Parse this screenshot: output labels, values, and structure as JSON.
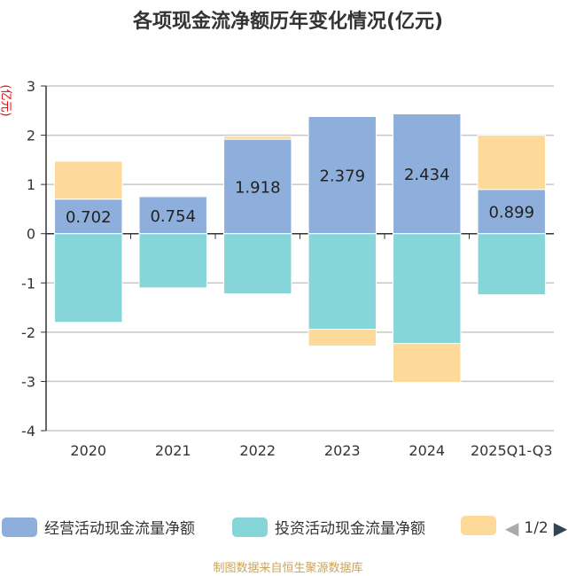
{
  "chart_data": {
    "type": "bar",
    "stacked": true,
    "title": "各项现金流净额历年变化情况(亿元)",
    "ylabel": "(亿元)",
    "categories": [
      "2020",
      "2021",
      "2022",
      "2023",
      "2024",
      "2025Q1-Q3"
    ],
    "ylim": [
      -4,
      3
    ],
    "yticks": [
      "3",
      "2",
      "1",
      "0",
      "-1",
      "-2",
      "-3",
      "-4"
    ],
    "grid": true,
    "legend_position": "bottom",
    "series": [
      {
        "name": "经营活动现金流量净额",
        "color": "#8eaedb",
        "values": [
          0.702,
          0.754,
          1.918,
          2.379,
          2.434,
          0.899
        ],
        "labels": [
          "0.702",
          "0.754",
          "1.918",
          "2.379",
          "2.434",
          "0.899"
        ]
      },
      {
        "name": "投资活动现金流量净额",
        "color": "#86d5d8",
        "values": [
          -1.8,
          -1.1,
          -1.22,
          -1.94,
          -2.23,
          -1.24
        ]
      },
      {
        "color": "#fdd99a",
        "values": [
          0.77,
          0.02,
          0.06,
          -0.34,
          -0.79,
          1.1
        ]
      }
    ]
  },
  "legend": {
    "page": "1/2"
  },
  "source": "制图数据来自恒生聚源数据库"
}
